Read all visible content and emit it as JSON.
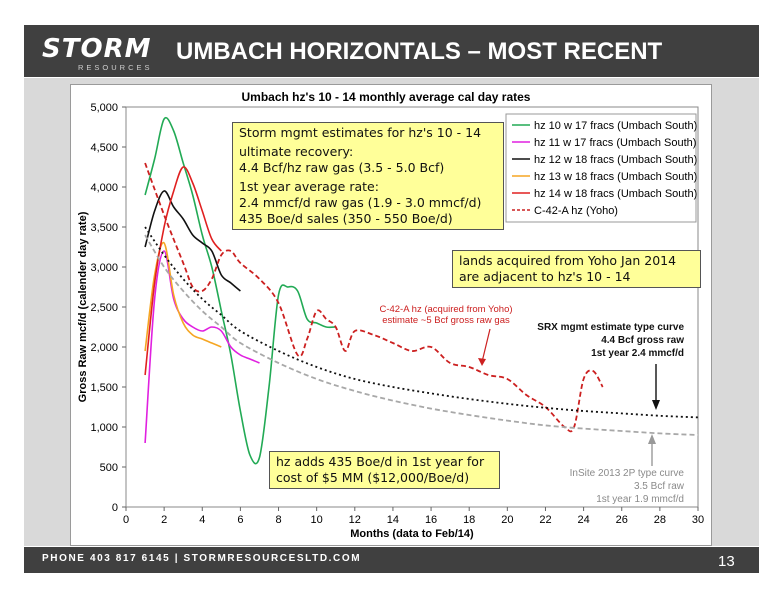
{
  "header": {
    "logo_main": "STORM",
    "logo_sub": "RESOURCES",
    "title": "UMBACH HORIZONTALS – MOST RECENT"
  },
  "footer": {
    "text": "PHONE 403 817 6145  |  STORMRESOURCESLTD.COM",
    "page_number": "13"
  },
  "colors": {
    "header_bg": "#404040",
    "accent": "#1f7bbf",
    "callout_bg": "#ffff99"
  },
  "callouts": {
    "estimates": [
      "Storm mgmt estimates for hz's 10 - 14",
      "ultimate recovery:",
      "4.4 Bcf/hz raw gas (3.5 - 5.0 Bcf)",
      "1st year average rate:",
      "2.4 mmcf/d raw gas (1.9 - 3.0 mmcf/d)",
      "435 Boe/d sales (350 - 550 Boe/d)"
    ],
    "lands": [
      "lands acquired from Yoho Jan 2014",
      "are adjacent to hz's 10 - 14"
    ],
    "cost": [
      "hz adds 435 Boe/d in 1st year for",
      "cost of $5 MM ($12,000/Boe/d)"
    ]
  },
  "chart_data": {
    "type": "line",
    "title": "Umbach hz's 10 - 14 monthly average cal day rates",
    "xlabel": "Months (data to Feb/14)",
    "ylabel": "Gross Raw mcf/d (calender day rate)",
    "xlim": [
      0,
      30
    ],
    "ylim": [
      0,
      5000
    ],
    "x_ticks": [
      0,
      2,
      4,
      6,
      8,
      10,
      12,
      14,
      16,
      18,
      20,
      22,
      24,
      26,
      28,
      30
    ],
    "y_ticks": [
      0,
      500,
      1000,
      1500,
      2000,
      2500,
      3000,
      3500,
      4000,
      4500,
      5000
    ],
    "y_tick_labels": [
      "0",
      "500",
      "1,000",
      "1,500",
      "2,000",
      "2,500",
      "3,000",
      "3,500",
      "4,000",
      "4,500",
      "5,000"
    ],
    "grid": false,
    "legend_position": "top-right",
    "series": [
      {
        "name": "hz 10 w 17 fracs (Umbach South)",
        "color": "#22aa55",
        "dash": "solid",
        "points": [
          [
            1,
            3900
          ],
          [
            1.5,
            4350
          ],
          [
            2,
            4850
          ],
          [
            2.5,
            4700
          ],
          [
            3,
            4300
          ],
          [
            3.5,
            3900
          ],
          [
            4,
            3400
          ],
          [
            4.5,
            3000
          ],
          [
            5,
            2450
          ],
          [
            5.5,
            1900
          ],
          [
            6,
            1200
          ],
          [
            6.5,
            650
          ],
          [
            7,
            620
          ],
          [
            7.5,
            1500
          ],
          [
            8,
            2650
          ],
          [
            8.5,
            2750
          ],
          [
            9,
            2700
          ],
          [
            9.5,
            2350
          ],
          [
            10,
            2300
          ],
          [
            10.5,
            2250
          ],
          [
            11,
            2250
          ]
        ]
      },
      {
        "name": "hz 11 w 17 fracs (Umbach South)",
        "color": "#e020e0",
        "dash": "solid",
        "points": [
          [
            1,
            800
          ],
          [
            1.5,
            2600
          ],
          [
            2,
            3200
          ],
          [
            2.5,
            2600
          ],
          [
            3,
            2350
          ],
          [
            3.5,
            2250
          ],
          [
            4,
            2200
          ],
          [
            4.5,
            2250
          ],
          [
            5,
            2200
          ],
          [
            5.5,
            2000
          ],
          [
            6,
            1900
          ],
          [
            6.5,
            1850
          ],
          [
            7,
            1800
          ]
        ]
      },
      {
        "name": "hz 12 w 18 fracs (Umbach South)",
        "color": "#111111",
        "dash": "solid",
        "points": [
          [
            1,
            3250
          ],
          [
            1.5,
            3700
          ],
          [
            2,
            3950
          ],
          [
            2.5,
            3750
          ],
          [
            3,
            3600
          ],
          [
            3.5,
            3400
          ],
          [
            4,
            3300
          ],
          [
            4.5,
            3200
          ],
          [
            5,
            2900
          ],
          [
            5.5,
            2800
          ],
          [
            6,
            2700
          ]
        ]
      },
      {
        "name": "hz 13 w 18 fracs (Umbach South)",
        "color": "#f5a623",
        "dash": "solid",
        "points": [
          [
            1,
            1950
          ],
          [
            1.5,
            2900
          ],
          [
            2,
            3300
          ],
          [
            2.5,
            2650
          ],
          [
            3,
            2300
          ],
          [
            3.5,
            2150
          ],
          [
            4,
            2100
          ],
          [
            4.5,
            2050
          ],
          [
            5,
            2000
          ]
        ]
      },
      {
        "name": "hz 14 w 18 fracs (Umbach South)",
        "color": "#e02020",
        "dash": "solid",
        "points": [
          [
            1,
            1650
          ],
          [
            1.5,
            2800
          ],
          [
            2,
            3500
          ],
          [
            2.5,
            3950
          ],
          [
            3,
            4250
          ],
          [
            3.5,
            4050
          ],
          [
            4,
            3700
          ],
          [
            4.5,
            3350
          ],
          [
            5,
            3200
          ]
        ]
      },
      {
        "name": "C-42-A hz (Yoho)",
        "color": "#cc2020",
        "dash": "dash",
        "points": [
          [
            1,
            4300
          ],
          [
            2,
            3650
          ],
          [
            3,
            3050
          ],
          [
            3.5,
            2750
          ],
          [
            4,
            2700
          ],
          [
            4.5,
            2850
          ],
          [
            5,
            3150
          ],
          [
            5.5,
            3200
          ],
          [
            6,
            3050
          ],
          [
            7,
            2850
          ],
          [
            8,
            2550
          ],
          [
            9,
            1900
          ],
          [
            9.5,
            2100
          ],
          [
            10,
            2450
          ],
          [
            10.5,
            2350
          ],
          [
            11,
            2250
          ],
          [
            11.5,
            1950
          ],
          [
            12,
            2200
          ],
          [
            13,
            2150
          ],
          [
            14,
            2050
          ],
          [
            15,
            1950
          ],
          [
            16,
            2000
          ],
          [
            17,
            1800
          ],
          [
            18,
            1750
          ],
          [
            19,
            1650
          ],
          [
            20,
            1600
          ],
          [
            21,
            1400
          ],
          [
            22,
            1250
          ],
          [
            23,
            1000
          ],
          [
            23.5,
            1000
          ],
          [
            24,
            1600
          ],
          [
            24.5,
            1700
          ],
          [
            25,
            1500
          ]
        ]
      },
      {
        "name": "SRX mgmt estimate type curve",
        "color": "#111111",
        "dash": "dot",
        "points": [
          [
            1,
            3500
          ],
          [
            2,
            3150
          ],
          [
            3,
            2850
          ],
          [
            4,
            2600
          ],
          [
            5,
            2400
          ],
          [
            6,
            2200
          ],
          [
            8,
            1950
          ],
          [
            10,
            1750
          ],
          [
            12,
            1600
          ],
          [
            14,
            1500
          ],
          [
            16,
            1420
          ],
          [
            18,
            1350
          ],
          [
            20,
            1290
          ],
          [
            22,
            1240
          ],
          [
            24,
            1200
          ],
          [
            26,
            1170
          ],
          [
            28,
            1140
          ],
          [
            30,
            1120
          ]
        ]
      },
      {
        "name": "InSite 2013 2P type curve",
        "color": "#a8a8a8",
        "dash": "dash",
        "points": [
          [
            1,
            3400
          ],
          [
            2,
            3000
          ],
          [
            3,
            2700
          ],
          [
            4,
            2450
          ],
          [
            5,
            2250
          ],
          [
            6,
            2050
          ],
          [
            8,
            1800
          ],
          [
            10,
            1600
          ],
          [
            12,
            1450
          ],
          [
            14,
            1330
          ],
          [
            16,
            1230
          ],
          [
            18,
            1150
          ],
          [
            20,
            1080
          ],
          [
            22,
            1020
          ],
          [
            24,
            980
          ],
          [
            26,
            950
          ],
          [
            28,
            920
          ],
          [
            30,
            900
          ]
        ]
      }
    ],
    "annotations": {
      "yoho": [
        "C-42-A hz (acquired from Yoho)",
        "estimate ~5 Bcf gross raw gas"
      ],
      "srx": [
        "SRX mgmt estimate type curve",
        "4.4 Bcf gross raw",
        "1st year 2.4 mmcf/d"
      ],
      "insite": [
        "InSite 2013 2P type curve",
        "3.5 Bcf raw",
        "1st year 1.9 mmcf/d"
      ]
    },
    "legend_entries": [
      "hz 10 w 17 fracs (Umbach South)",
      "hz 11 w 17 fracs (Umbach South)",
      "hz 12 w 18 fracs (Umbach South)",
      "hz 13 w 18 fracs (Umbach South)",
      "hz 14 w 18 fracs (Umbach South)",
      "C-42-A hz (Yoho)"
    ]
  }
}
